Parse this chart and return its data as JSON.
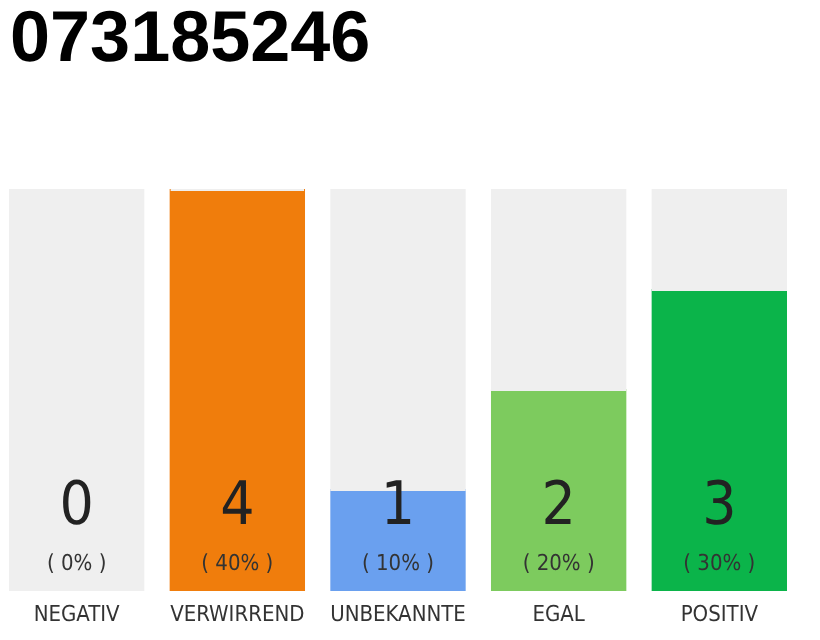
{
  "chart_data": {
    "type": "bar",
    "title": "073185246",
    "categories": [
      "NEGATIV",
      "VERWIRREND",
      "UNBEKANNTE",
      "EGAL",
      "POSITIV"
    ],
    "stacked": true,
    "series": [
      {
        "colors": [
          "#555555",
          "#f07d0c",
          "#6aa0ef",
          "#7dcb5e",
          "#0bb44a"
        ],
        "values": [
          0,
          40,
          10,
          20,
          30
        ],
        "value_labels": [
          "( 0% )",
          "( 40% )",
          "( 10% )",
          "( 20% )",
          "( 30% )"
        ]
      },
      {
        "color": "#efefef",
        "values": [
          40,
          0,
          30,
          20,
          10
        ]
      }
    ],
    "annotations": [
      "0",
      "4",
      "1",
      "2",
      "3"
    ],
    "tick_labels": "x"
  }
}
